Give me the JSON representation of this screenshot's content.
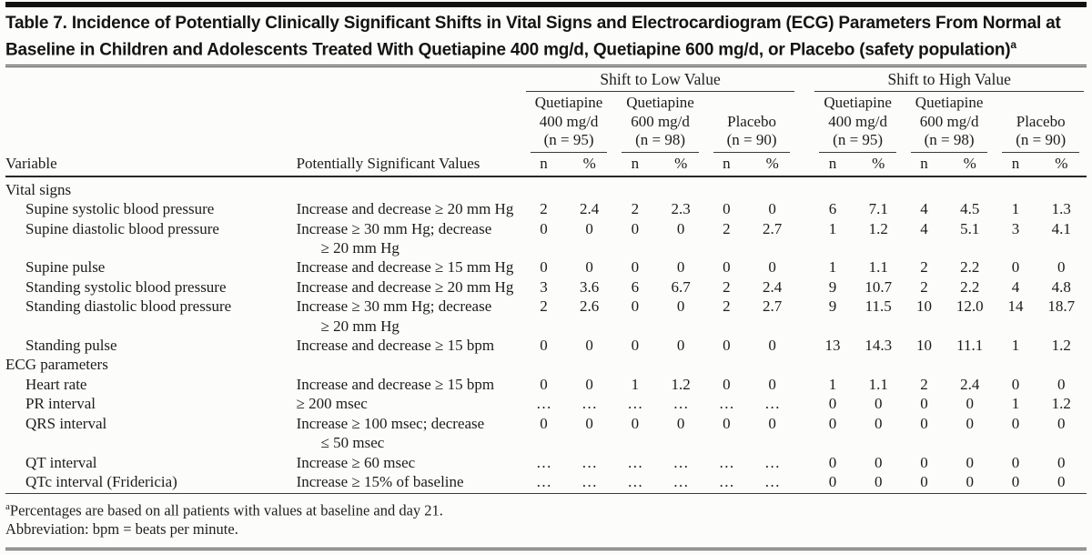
{
  "palette": {
    "paper": "#fcfcfa",
    "ink": "#1c1c1c",
    "rule": "#3a3a3a",
    "heavy_rule": "#121212"
  },
  "table": {
    "title": "Table 7. Incidence of Potentially Clinically Significant Shifts in Vital Signs and Electrocardiogram (ECG) Parameters From Normal at Baseline in Children and Adolescents Treated With Quetiapine 400 mg/d, Quetiapine 600 mg/d, or Placebo (safety population)",
    "title_sup": "a",
    "header": {
      "variable": "Variable",
      "psv": "Potentially Significant Values",
      "groups": [
        "Shift to Low Value",
        "Shift to High Value"
      ],
      "subgroups": [
        {
          "line1": "Quetiapine",
          "line2": "400 mg/d",
          "line3": "(n = 95)"
        },
        {
          "line1": "Quetiapine",
          "line2": "600 mg/d",
          "line3": "(n = 98)"
        },
        {
          "line1": "Placebo",
          "line3": "(n = 90)"
        }
      ],
      "n_label": "n",
      "pct_label": "%"
    },
    "sections": [
      {
        "name": "Vital signs",
        "rows": [
          {
            "variable": "Supine systolic blood pressure",
            "psv": "Increase and decrease ≥ 20 mm Hg",
            "values": [
              "2",
              "2.4",
              "2",
              "2.3",
              "0",
              "0",
              "6",
              "7.1",
              "4",
              "4.5",
              "1",
              "1.3"
            ]
          },
          {
            "variable": "Supine diastolic blood pressure",
            "psv": "Increase ≥ 30 mm Hg; decrease",
            "psv2": "≥ 20 mm Hg",
            "values": [
              "0",
              "0",
              "0",
              "0",
              "2",
              "2.7",
              "1",
              "1.2",
              "4",
              "5.1",
              "3",
              "4.1"
            ]
          },
          {
            "variable": "Supine pulse",
            "psv": "Increase and decrease ≥ 15 mm Hg",
            "values": [
              "0",
              "0",
              "0",
              "0",
              "0",
              "0",
              "1",
              "1.1",
              "2",
              "2.2",
              "0",
              "0"
            ]
          },
          {
            "variable": "Standing systolic blood pressure",
            "psv": "Increase and decrease ≥ 20 mm Hg",
            "values": [
              "3",
              "3.6",
              "6",
              "6.7",
              "2",
              "2.4",
              "9",
              "10.7",
              "2",
              "2.2",
              "4",
              "4.8"
            ]
          },
          {
            "variable": "Standing diastolic blood pressure",
            "psv": "Increase ≥ 30 mm Hg; decrease",
            "psv2": "≥ 20 mm Hg",
            "values": [
              "2",
              "2.6",
              "0",
              "0",
              "2",
              "2.7",
              "9",
              "11.5",
              "10",
              "12.0",
              "14",
              "18.7"
            ]
          },
          {
            "variable": "Standing pulse",
            "psv": "Increase and decrease ≥ 15 bpm",
            "values": [
              "0",
              "0",
              "0",
              "0",
              "0",
              "0",
              "13",
              "14.3",
              "10",
              "11.1",
              "1",
              "1.2"
            ]
          }
        ]
      },
      {
        "name": "ECG parameters",
        "rows": [
          {
            "variable": "Heart rate",
            "psv": "Increase and decrease ≥ 15 bpm",
            "values": [
              "0",
              "0",
              "1",
              "1.2",
              "0",
              "0",
              "1",
              "1.1",
              "2",
              "2.4",
              "0",
              "0"
            ]
          },
          {
            "variable": "PR interval",
            "psv": "≥ 200 msec",
            "values": [
              "…",
              "…",
              "…",
              "…",
              "…",
              "…",
              "0",
              "0",
              "0",
              "0",
              "1",
              "1.2"
            ]
          },
          {
            "variable": "QRS interval",
            "psv": "Increase ≥ 100 msec; decrease",
            "psv2": "≤ 50 msec",
            "values": [
              "0",
              "0",
              "0",
              "0",
              "0",
              "0",
              "0",
              "0",
              "0",
              "0",
              "0",
              "0"
            ]
          },
          {
            "variable": "QT interval",
            "psv": "Increase ≥ 60 msec",
            "values": [
              "…",
              "…",
              "…",
              "…",
              "…",
              "…",
              "0",
              "0",
              "0",
              "0",
              "0",
              "0"
            ]
          },
          {
            "variable": "QTc interval (Fridericia)",
            "psv": "Increase ≥ 15% of baseline",
            "values": [
              "…",
              "…",
              "…",
              "…",
              "…",
              "…",
              "0",
              "0",
              "0",
              "0",
              "0",
              "0"
            ]
          }
        ]
      }
    ]
  },
  "footnotes": [
    {
      "sup": "a",
      "text": "Percentages are based on all patients with values at baseline and day 21."
    },
    {
      "text": "Abbreviation: bpm = beats per minute."
    }
  ]
}
